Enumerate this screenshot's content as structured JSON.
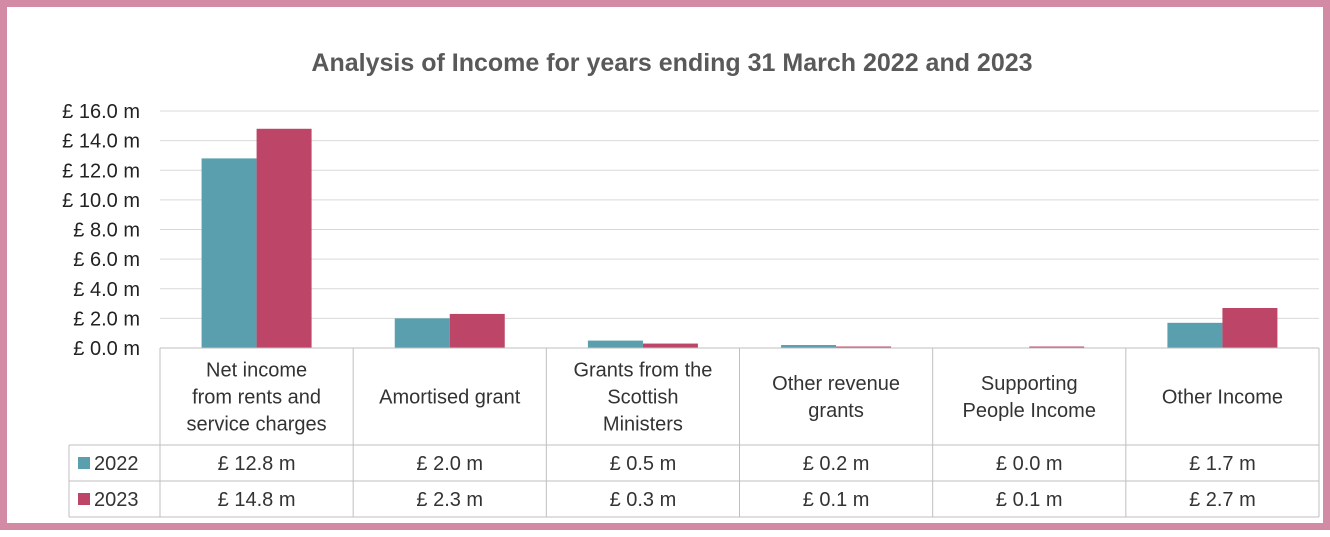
{
  "chart_data": {
    "type": "bar",
    "title": "Analysis of Income for years ending 31 March 2022 and 2023",
    "categories": [
      [
        "Net income",
        "from rents and",
        "service charges"
      ],
      [
        "Amortised grant"
      ],
      [
        "Grants from the",
        "Scottish",
        "Ministers"
      ],
      [
        "Other revenue",
        "grants"
      ],
      [
        "Supporting",
        "People Income"
      ],
      [
        "Other Income"
      ]
    ],
    "y_ticks": [
      "£ 0.0 m",
      "£ 2.0 m",
      "£ 4.0 m",
      "£ 6.0 m",
      "£ 8.0 m",
      "£ 10.0 m",
      "£ 12.0 m",
      "£ 14.0 m",
      "£ 16.0 m"
    ],
    "ylim": [
      0,
      16
    ],
    "grid": true,
    "legend": "data-table",
    "series": [
      {
        "name": "2022",
        "color": "#5a9fad",
        "values": [
          12.8,
          2.0,
          0.5,
          0.2,
          0.0,
          1.7
        ],
        "labels": [
          "£ 12.8 m",
          "£ 2.0 m",
          "£ 0.5 m",
          "£ 0.2 m",
          "£ 0.0 m",
          "£ 1.7 m"
        ]
      },
      {
        "name": "2023",
        "color": "#bd4668",
        "values": [
          14.8,
          2.3,
          0.3,
          0.1,
          0.1,
          2.7
        ],
        "labels": [
          "£ 14.8 m",
          "£ 2.3 m",
          "£ 0.3 m",
          "£ 0.1 m",
          "£ 0.1 m",
          "£ 2.7 m"
        ]
      }
    ]
  }
}
